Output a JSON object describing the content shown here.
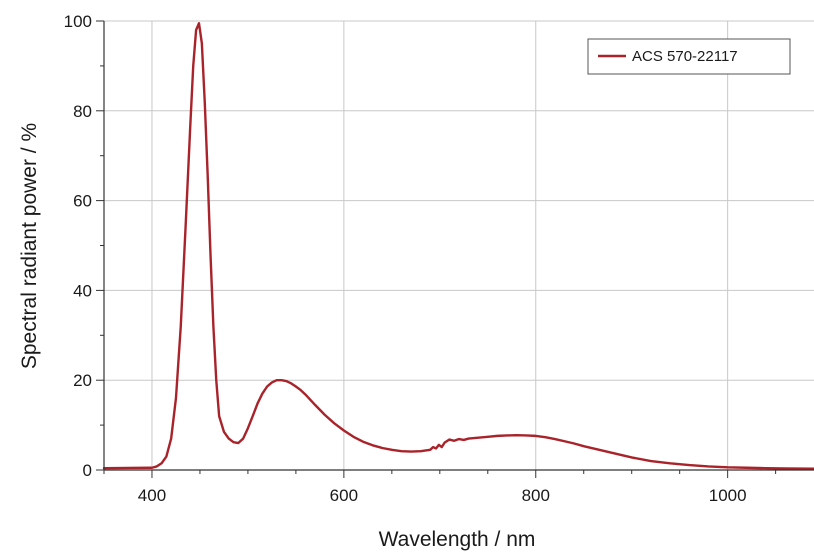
{
  "chart_data": {
    "type": "line",
    "xlabel": "Wavelength / nm",
    "ylabel": "Spectral radiant power / %",
    "xlim": [
      350,
      1090
    ],
    "ylim": [
      0,
      100
    ],
    "x_ticks": [
      400,
      600,
      800,
      1000
    ],
    "y_ticks": [
      0,
      20,
      40,
      60,
      80,
      100
    ],
    "grid": true,
    "legend_position": "top-right",
    "series": [
      {
        "name": "ACS 570-22117",
        "color": "#a8232a",
        "x": [
          350,
          400,
          405,
          410,
          415,
          420,
          425,
          430,
          435,
          440,
          443,
          446,
          449,
          452,
          455,
          458,
          461,
          464,
          467,
          470,
          475,
          480,
          485,
          490,
          495,
          500,
          505,
          510,
          515,
          520,
          525,
          530,
          535,
          540,
          545,
          550,
          555,
          560,
          570,
          580,
          590,
          600,
          610,
          620,
          630,
          640,
          650,
          660,
          670,
          680,
          690,
          693,
          696,
          699,
          702,
          705,
          710,
          715,
          720,
          725,
          730,
          740,
          750,
          760,
          770,
          780,
          790,
          800,
          810,
          820,
          830,
          840,
          850,
          860,
          870,
          880,
          890,
          900,
          920,
          940,
          960,
          980,
          1000,
          1020,
          1040,
          1060,
          1090
        ],
        "values": [
          0.4,
          0.5,
          0.8,
          1.5,
          3,
          7,
          16,
          32,
          54,
          77,
          90,
          98,
          99.5,
          95,
          82,
          66,
          48,
          32,
          20,
          12,
          8.5,
          7,
          6.2,
          6,
          7,
          9.3,
          12,
          14.8,
          17,
          18.6,
          19.5,
          20,
          20,
          19.8,
          19.3,
          18.6,
          17.8,
          16.8,
          14.5,
          12.3,
          10.4,
          8.8,
          7.4,
          6.3,
          5.5,
          4.9,
          4.5,
          4.2,
          4.1,
          4.2,
          4.5,
          5.1,
          4.8,
          5.6,
          5.1,
          6.1,
          6.8,
          6.5,
          6.9,
          6.7,
          7,
          7.2,
          7.4,
          7.6,
          7.7,
          7.75,
          7.7,
          7.6,
          7.3,
          6.9,
          6.4,
          5.9,
          5.3,
          4.8,
          4.3,
          3.8,
          3.3,
          2.8,
          2.0,
          1.5,
          1.1,
          0.8,
          0.6,
          0.5,
          0.4,
          0.35,
          0.3
        ]
      }
    ]
  }
}
